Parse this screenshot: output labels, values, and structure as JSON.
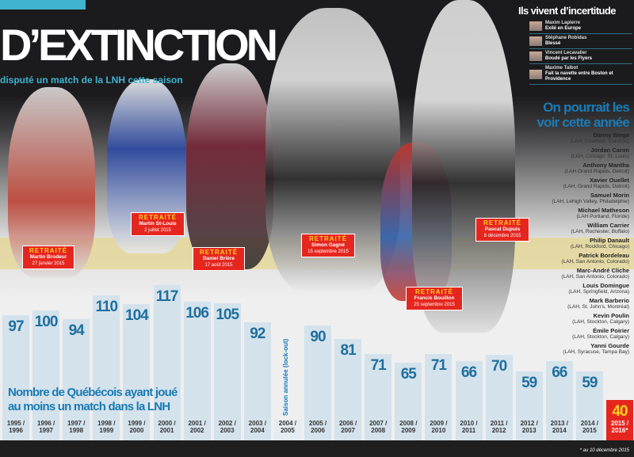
{
  "header": {
    "title": "D’EXTINCTION",
    "subtitle": "disputé un match de la LNH cette saison"
  },
  "side_panel": {
    "title": "Ils vivent d’incertitude",
    "items": [
      {
        "name": "Maxim Lapierre",
        "status": "Exilé en Europe"
      },
      {
        "name": "Stéphane Robidas",
        "status": "Blessé"
      },
      {
        "name": "Vincent Lecavalier",
        "status": "Boudé par les Flyers"
      },
      {
        "name": "Maxime Talbot",
        "status": "Fait la navette entre Boston et Providence"
      }
    ]
  },
  "prospects": {
    "title": "On pourrait les voir cette année",
    "items": [
      {
        "name": "Danny Biega",
        "team": "(LAH, Charlotte, Caroline)"
      },
      {
        "name": "Jordan Caron",
        "team": "(LAH, Chicago, St. Louis)"
      },
      {
        "name": "Anthony Mantha",
        "team": "(LAH Grand Rapids, Detroit)"
      },
      {
        "name": "Xavier Ouellet",
        "team": "(LAH, Grand Rapids, Detroit)"
      },
      {
        "name": "Samuel Morin",
        "team": "(LAH, Lehigh Valley, Philadelphie)"
      },
      {
        "name": "Michael Matheson",
        "team": "(LAH Portland, Floride)"
      },
      {
        "name": "William Carrier",
        "team": "(LAH, Rochester, Buffalo)"
      },
      {
        "name": "Philip Danault",
        "team": "(LAH, Rockford, Chicago)"
      },
      {
        "name": "Patrick Bordeleau",
        "team": "(LAH, San Antonio, Colorado)"
      },
      {
        "name": "Marc-André Cliche",
        "team": "(LAH, San Antonio, Colorado)"
      },
      {
        "name": "Louis Domingue",
        "team": "(LAH, Springfield, Arizona)"
      },
      {
        "name": "Mark Barberio",
        "team": "(LAH, St. John’s, Montréal)"
      },
      {
        "name": "Kevin Poulin",
        "team": "(LAH, Stockton, Calgary)"
      },
      {
        "name": "Émile Poirier",
        "team": "(LAH, Stockton, Calgary)"
      },
      {
        "name": "Yanni Gourde",
        "team": "(LAH, Syracuse, Tampa Bay)"
      }
    ]
  },
  "retired": [
    {
      "label": "RETRAITÉ",
      "name": "Martin Brodeur",
      "date": "27 janvier 2015"
    },
    {
      "label": "RETRAITÉ",
      "name": "Martin St-Louis",
      "date": "2 juillet 2015"
    },
    {
      "label": "RETRAITÉ",
      "name": "Daniel Brière",
      "date": "17 août 2015"
    },
    {
      "label": "RETRAITÉ",
      "name": "Simon Gagné",
      "date": "15 septembre 2015"
    },
    {
      "label": "RETRAITÉ",
      "name": "Francis Bouillon",
      "date": "25 septembre 2015"
    },
    {
      "label": "RETRAITÉ",
      "name": "Pascal Dupuis",
      "date": "8 décembre 2015"
    }
  ],
  "chart_data": {
    "type": "bar",
    "title": "Nombre de Québécois ayant joué au moins un match dans la LNH",
    "categories": [
      "1995 / 1996",
      "1996 / 1997",
      "1997 / 1998",
      "1998 / 1999",
      "1999 / 2000",
      "2000 / 2001",
      "2001 / 2002",
      "2002 / 2003",
      "2003 / 2004",
      "2004 / 2005",
      "2005 / 2006",
      "2006 / 2007",
      "2007 / 2008",
      "2008 / 2009",
      "2009 / 2010",
      "2010 / 2011",
      "2011 / 2012",
      "2012 / 2013",
      "2013 / 2014",
      "2014 / 2015",
      "2015 / 2016*"
    ],
    "values": [
      97,
      100,
      94,
      110,
      104,
      117,
      106,
      105,
      92,
      null,
      90,
      81,
      71,
      65,
      71,
      66,
      70,
      59,
      66,
      59,
      40
    ],
    "annotations": [
      "Saison annulée (lock-out)"
    ],
    "footnote": "* au 10 décembre 2015",
    "colors": {
      "bar": "#d4e2ec",
      "value": "#1e6f9e",
      "highlight": "#e5261f",
      "highlight_value": "#ffd21f"
    }
  }
}
